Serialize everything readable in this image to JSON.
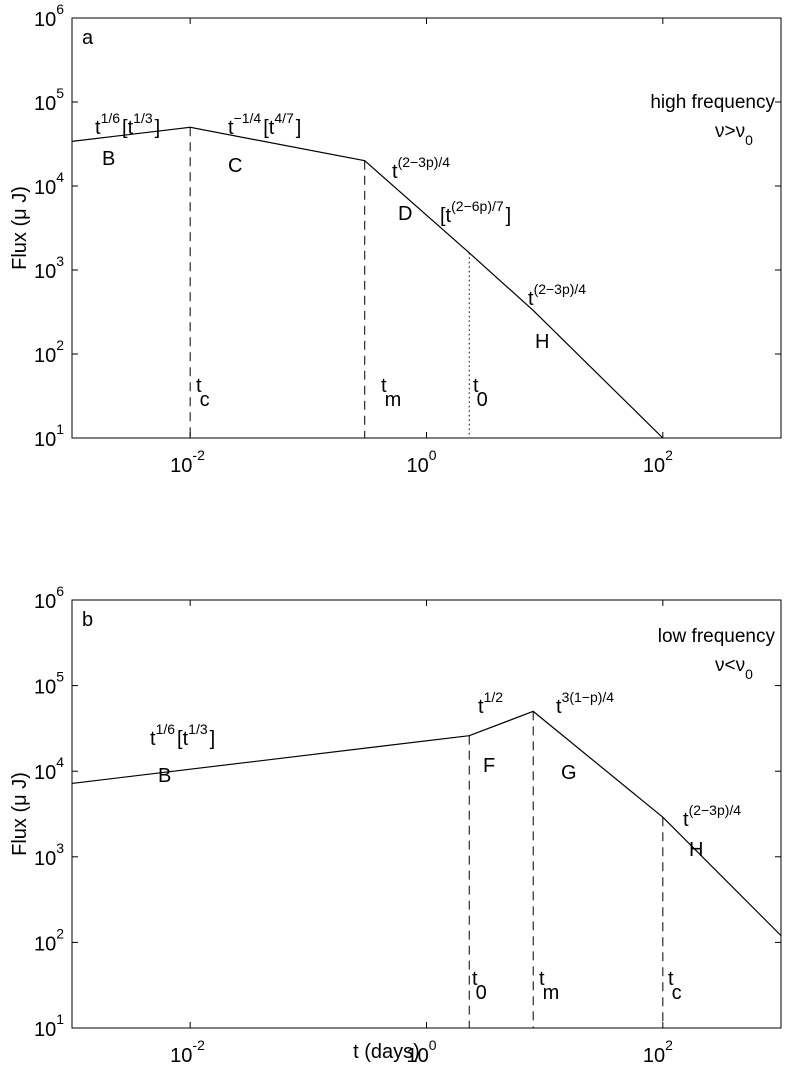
{
  "chart_data": [
    {
      "type": "line",
      "panel_label": "a",
      "xlabel": "",
      "ylabel": "Flux (μ J)",
      "xscale": "log",
      "yscale": "log",
      "xlim": [
        0.001,
        1000
      ],
      "ylim": [
        10,
        1000000
      ],
      "grid": false,
      "x_ticks": [
        {
          "base": "10",
          "exp": "-2",
          "value": 0.01
        },
        {
          "base": "10",
          "exp": "0",
          "value": 1
        },
        {
          "base": "10",
          "exp": "2",
          "value": 100
        }
      ],
      "y_ticks": [
        {
          "base": "10",
          "exp": "1",
          "value": 10
        },
        {
          "base": "10",
          "exp": "2",
          "value": 100
        },
        {
          "base": "10",
          "exp": "3",
          "value": 1000
        },
        {
          "base": "10",
          "exp": "4",
          "value": 10000
        },
        {
          "base": "10",
          "exp": "5",
          "value": 100000
        },
        {
          "base": "10",
          "exp": "6",
          "value": 1000000
        }
      ],
      "series": [
        {
          "points": [
            [
              0.001,
              34000
            ],
            [
              0.01,
              50000
            ],
            [
              0.3,
              20000
            ],
            [
              2.3,
              1600
            ],
            [
              8,
              330
            ],
            [
              100,
              10
            ]
          ]
        }
      ],
      "vlines": [
        {
          "x": 0.01,
          "y_top": 50000,
          "style": "dashed",
          "label": "t",
          "sub": "c"
        },
        {
          "x": 0.3,
          "y_top": 20000,
          "style": "dashed",
          "label": "t",
          "sub": "m"
        },
        {
          "x": 2.3,
          "y_top": 1600,
          "style": "dotted",
          "label": "t",
          "sub": "0"
        }
      ],
      "annotations": [
        {
          "segment": "B",
          "formula": [
            [
              "t",
              "1/6"
            ],
            [
              "[t",
              "1/3"
            ],
            [
              "]",
              ""
            ]
          ]
        },
        {
          "segment": "C",
          "formula": [
            [
              "t",
              "−1/4"
            ],
            [
              "[t",
              "4/7"
            ],
            [
              "]",
              ""
            ]
          ]
        },
        {
          "segment": "D",
          "formula": [
            [
              "t",
              "(2−3p)/4"
            ]
          ]
        },
        {
          "segment": "",
          "formula": [
            [
              "[t",
              "(2−6p)/7"
            ],
            [
              "]",
              ""
            ]
          ]
        },
        {
          "segment": "H",
          "formula": [
            [
              "t",
              "(2−3p)/4"
            ]
          ]
        }
      ],
      "frequency_text": "high frequency",
      "frequency_condition": {
        "lhs": "ν>ν",
        "sub": "0"
      }
    },
    {
      "type": "line",
      "panel_label": "b",
      "xlabel": "t (days)",
      "ylabel": "Flux (μ J)",
      "xscale": "log",
      "yscale": "log",
      "xlim": [
        0.001,
        1000
      ],
      "ylim": [
        10,
        1000000
      ],
      "grid": false,
      "x_ticks": [
        {
          "base": "10",
          "exp": "-2",
          "value": 0.01
        },
        {
          "base": "10",
          "exp": "0",
          "value": 1
        },
        {
          "base": "10",
          "exp": "2",
          "value": 100
        }
      ],
      "y_ticks": [
        {
          "base": "10",
          "exp": "1",
          "value": 10
        },
        {
          "base": "10",
          "exp": "2",
          "value": 100
        },
        {
          "base": "10",
          "exp": "3",
          "value": 1000
        },
        {
          "base": "10",
          "exp": "4",
          "value": 10000
        },
        {
          "base": "10",
          "exp": "5",
          "value": 100000
        },
        {
          "base": "10",
          "exp": "6",
          "value": 1000000
        }
      ],
      "series": [
        {
          "points": [
            [
              0.001,
              7200
            ],
            [
              2.3,
              26000
            ],
            [
              8,
              50000
            ],
            [
              100,
              2900
            ],
            [
              1000,
              120
            ]
          ]
        }
      ],
      "vlines": [
        {
          "x": 2.3,
          "y_top": 26000,
          "style": "dashed",
          "label": "t",
          "sub": "0"
        },
        {
          "x": 8,
          "y_top": 50000,
          "style": "dashed",
          "label": "t",
          "sub": "m"
        },
        {
          "x": 100,
          "y_top": 2900,
          "style": "dashed",
          "label": "t",
          "sub": "c"
        }
      ],
      "annotations": [
        {
          "segment": "B",
          "formula": [
            [
              "t",
              "1/6"
            ],
            [
              "[t",
              "1/3"
            ],
            [
              "]",
              ""
            ]
          ]
        },
        {
          "segment": "F",
          "formula": [
            [
              "t",
              "1/2"
            ]
          ]
        },
        {
          "segment": "G",
          "formula": [
            [
              "t",
              "3(1−p)/4"
            ]
          ]
        },
        {
          "segment": "H",
          "formula": [
            [
              "t",
              "(2−3p)/4"
            ]
          ]
        }
      ],
      "frequency_text": "low frequency",
      "frequency_condition": {
        "lhs": "ν<ν",
        "sub": "0"
      }
    }
  ]
}
